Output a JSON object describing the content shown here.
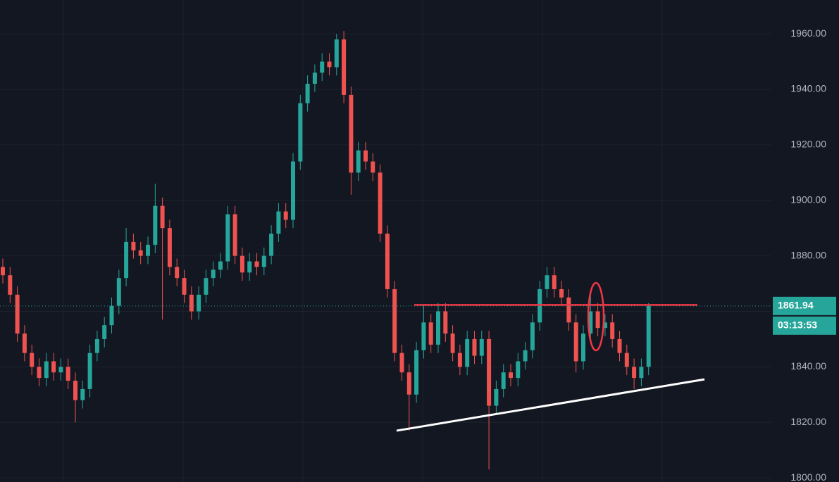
{
  "chart_data": {
    "type": "candlestick",
    "ylim": [
      1798.5,
      1972.2
    ],
    "yticks": [
      {
        "value": 1800,
        "label": "1800.00"
      },
      {
        "value": 1820,
        "label": "1820.00"
      },
      {
        "value": 1840,
        "label": "1840.00"
      },
      {
        "value": 1860,
        "label": "1860.00"
      },
      {
        "value": 1880,
        "label": "1880.00"
      },
      {
        "value": 1900,
        "label": "1900.00"
      },
      {
        "value": 1920,
        "label": "1920.00"
      },
      {
        "value": 1940,
        "label": "1940.00"
      },
      {
        "value": 1960,
        "label": "1960.00"
      }
    ],
    "grid": true,
    "up_color": "#26a69a",
    "down_color": "#ef5350",
    "open": [
      1876,
      1873,
      1866,
      1852,
      1845,
      1840,
      1836,
      1842,
      1838,
      1840,
      1835,
      1828,
      1832,
      1845,
      1850,
      1855,
      1862,
      1872,
      1885,
      1882,
      1880,
      1884,
      1898,
      1890,
      1876,
      1872,
      1866,
      1860,
      1866,
      1872,
      1875,
      1878,
      1895,
      1880,
      1874,
      1878,
      1876,
      1880,
      1888,
      1896,
      1893,
      1914,
      1935,
      1942,
      1946,
      1950,
      1948,
      1958,
      1938,
      1910,
      1918,
      1914,
      1910,
      1888,
      1868,
      1845,
      1838,
      1830,
      1846,
      1856,
      1848,
      1860,
      1852,
      1845,
      1840,
      1850,
      1844,
      1850,
      1826,
      1832,
      1838,
      1836,
      1842,
      1846,
      1856,
      1868,
      1873,
      1868,
      1865,
      1856,
      1842,
      1852,
      1860,
      1854,
      1856,
      1850,
      1845,
      1840,
      1836,
      1840
    ],
    "high": [
      1879,
      1876,
      1869,
      1855,
      1848,
      1843,
      1845,
      1845,
      1843,
      1843,
      1838,
      1835,
      1848,
      1853,
      1858,
      1865,
      1875,
      1890,
      1888,
      1885,
      1887,
      1906,
      1901,
      1893,
      1879,
      1875,
      1869,
      1869,
      1875,
      1878,
      1881,
      1898,
      1898,
      1883,
      1881,
      1881,
      1883,
      1891,
      1899,
      1899,
      1917,
      1938,
      1945,
      1949,
      1953,
      1953,
      1960,
      1961,
      1941,
      1921,
      1921,
      1917,
      1913,
      1891,
      1871,
      1848,
      1841,
      1849,
      1862,
      1859,
      1863,
      1863,
      1855,
      1848,
      1853,
      1853,
      1853,
      1853,
      1835,
      1841,
      1841,
      1845,
      1849,
      1859,
      1871,
      1876,
      1876,
      1871,
      1868,
      1859,
      1855,
      1866,
      1863,
      1859,
      1859,
      1853,
      1848,
      1843,
      1843,
      1863
    ],
    "low": [
      1870,
      1863,
      1849,
      1842,
      1837,
      1833,
      1833,
      1835,
      1835,
      1832,
      1820,
      1825,
      1829,
      1842,
      1847,
      1852,
      1859,
      1869,
      1879,
      1877,
      1877,
      1881,
      1857,
      1873,
      1869,
      1863,
      1857,
      1857,
      1863,
      1869,
      1872,
      1875,
      1877,
      1871,
      1871,
      1873,
      1873,
      1877,
      1885,
      1890,
      1890,
      1911,
      1932,
      1939,
      1943,
      1945,
      1945,
      1935,
      1902,
      1907,
      1911,
      1907,
      1885,
      1865,
      1842,
      1835,
      1817,
      1827,
      1843,
      1845,
      1845,
      1849,
      1842,
      1837,
      1837,
      1841,
      1841,
      1803,
      1823,
      1829,
      1833,
      1833,
      1839,
      1843,
      1853,
      1865,
      1865,
      1862,
      1853,
      1838,
      1839,
      1849,
      1851,
      1851,
      1847,
      1842,
      1837,
      1832,
      1833,
      1837
    ],
    "close": [
      1873,
      1866,
      1852,
      1845,
      1840,
      1836,
      1842,
      1838,
      1840,
      1835,
      1828,
      1832,
      1845,
      1850,
      1855,
      1862,
      1872,
      1885,
      1882,
      1880,
      1884,
      1898,
      1890,
      1876,
      1872,
      1866,
      1860,
      1866,
      1872,
      1875,
      1878,
      1895,
      1880,
      1874,
      1878,
      1876,
      1880,
      1888,
      1896,
      1893,
      1914,
      1935,
      1942,
      1946,
      1950,
      1948,
      1958,
      1938,
      1910,
      1918,
      1914,
      1910,
      1888,
      1868,
      1845,
      1838,
      1830,
      1846,
      1856,
      1848,
      1860,
      1852,
      1845,
      1840,
      1850,
      1844,
      1850,
      1826,
      1832,
      1838,
      1836,
      1842,
      1846,
      1856,
      1868,
      1873,
      1868,
      1865,
      1856,
      1842,
      1852,
      1860,
      1854,
      1856,
      1850,
      1845,
      1840,
      1836,
      1840,
      1861.94
    ],
    "countdown": "03:13:53",
    "drawings": {
      "resistance": 1862.3,
      "resistance_color": "#f23645",
      "trendline": [
        1817,
        1835.5
      ],
      "trendline_color": "#ffffff"
    }
  }
}
